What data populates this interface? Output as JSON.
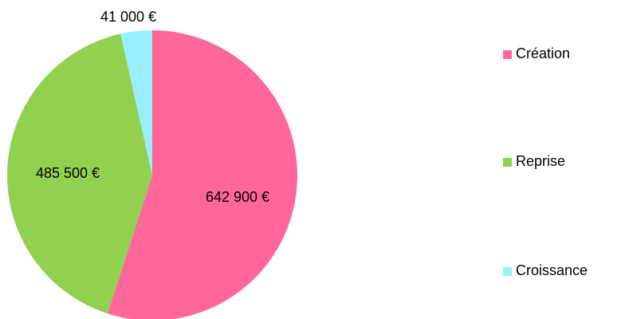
{
  "chart_data": {
    "type": "pie",
    "categories": [
      "Création",
      "Reprise",
      "Croissance"
    ],
    "values": [
      642900,
      485500,
      41000
    ],
    "value_labels": [
      "642 900 €",
      "485 500 €",
      "41 000 €"
    ],
    "colors": [
      "#ff6699",
      "#92d050",
      "#99eeff"
    ],
    "legend": "right"
  }
}
